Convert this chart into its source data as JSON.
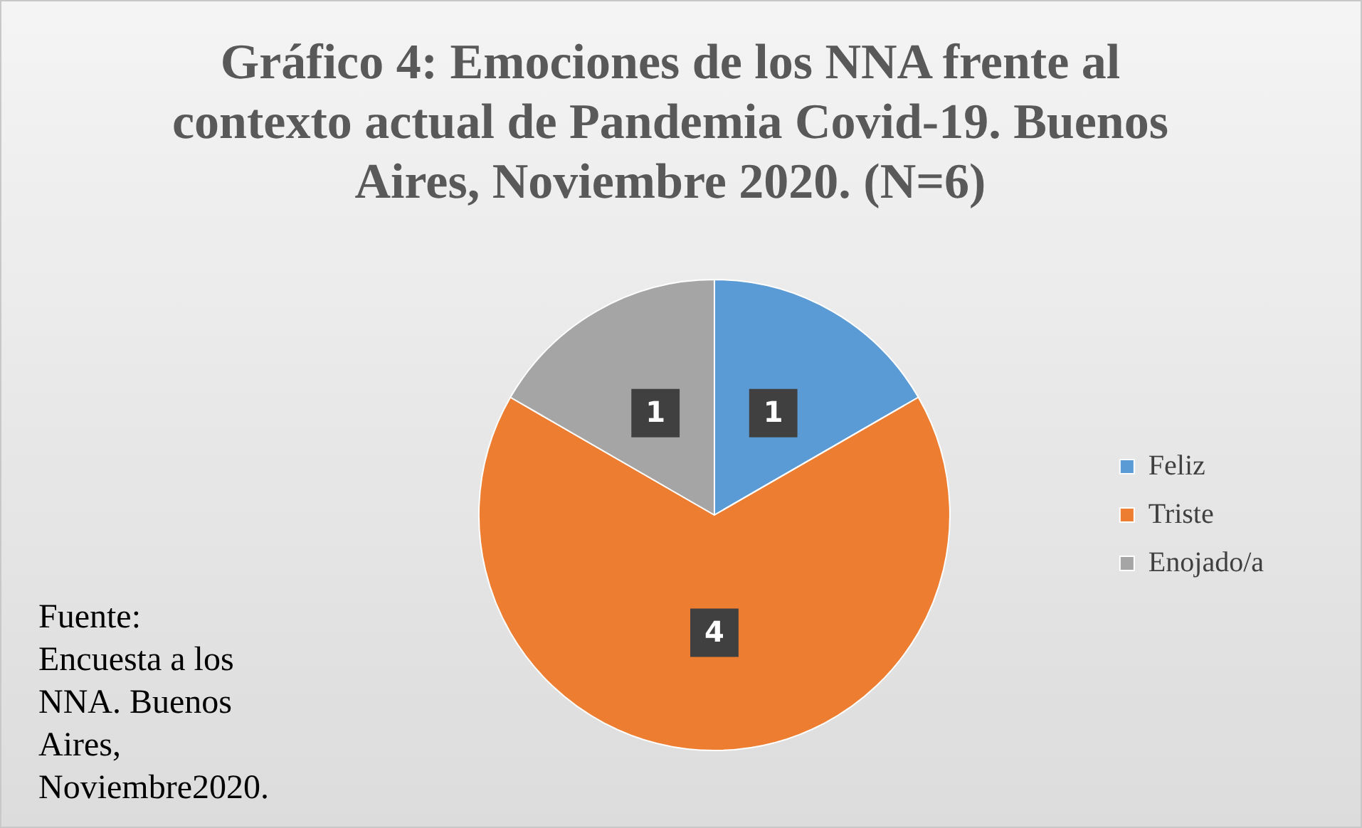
{
  "chart_data": {
    "type": "pie",
    "title": "Gráfico 4: Emociones de los NNA frente al contexto actual de Pandemia Covid-19. Buenos Aires, Noviembre 2020. (N=6)",
    "categories": [
      "Feliz",
      "Triste",
      "Enojado/a"
    ],
    "values": [
      1,
      4,
      1
    ],
    "colors": [
      "#5b9bd5",
      "#ed7d31",
      "#a5a5a5"
    ],
    "data_labels": true,
    "legend": "right",
    "annotations": [
      "Fuente: Encuesta a los NNA. Buenos Aires, Noviembre2020."
    ]
  }
}
